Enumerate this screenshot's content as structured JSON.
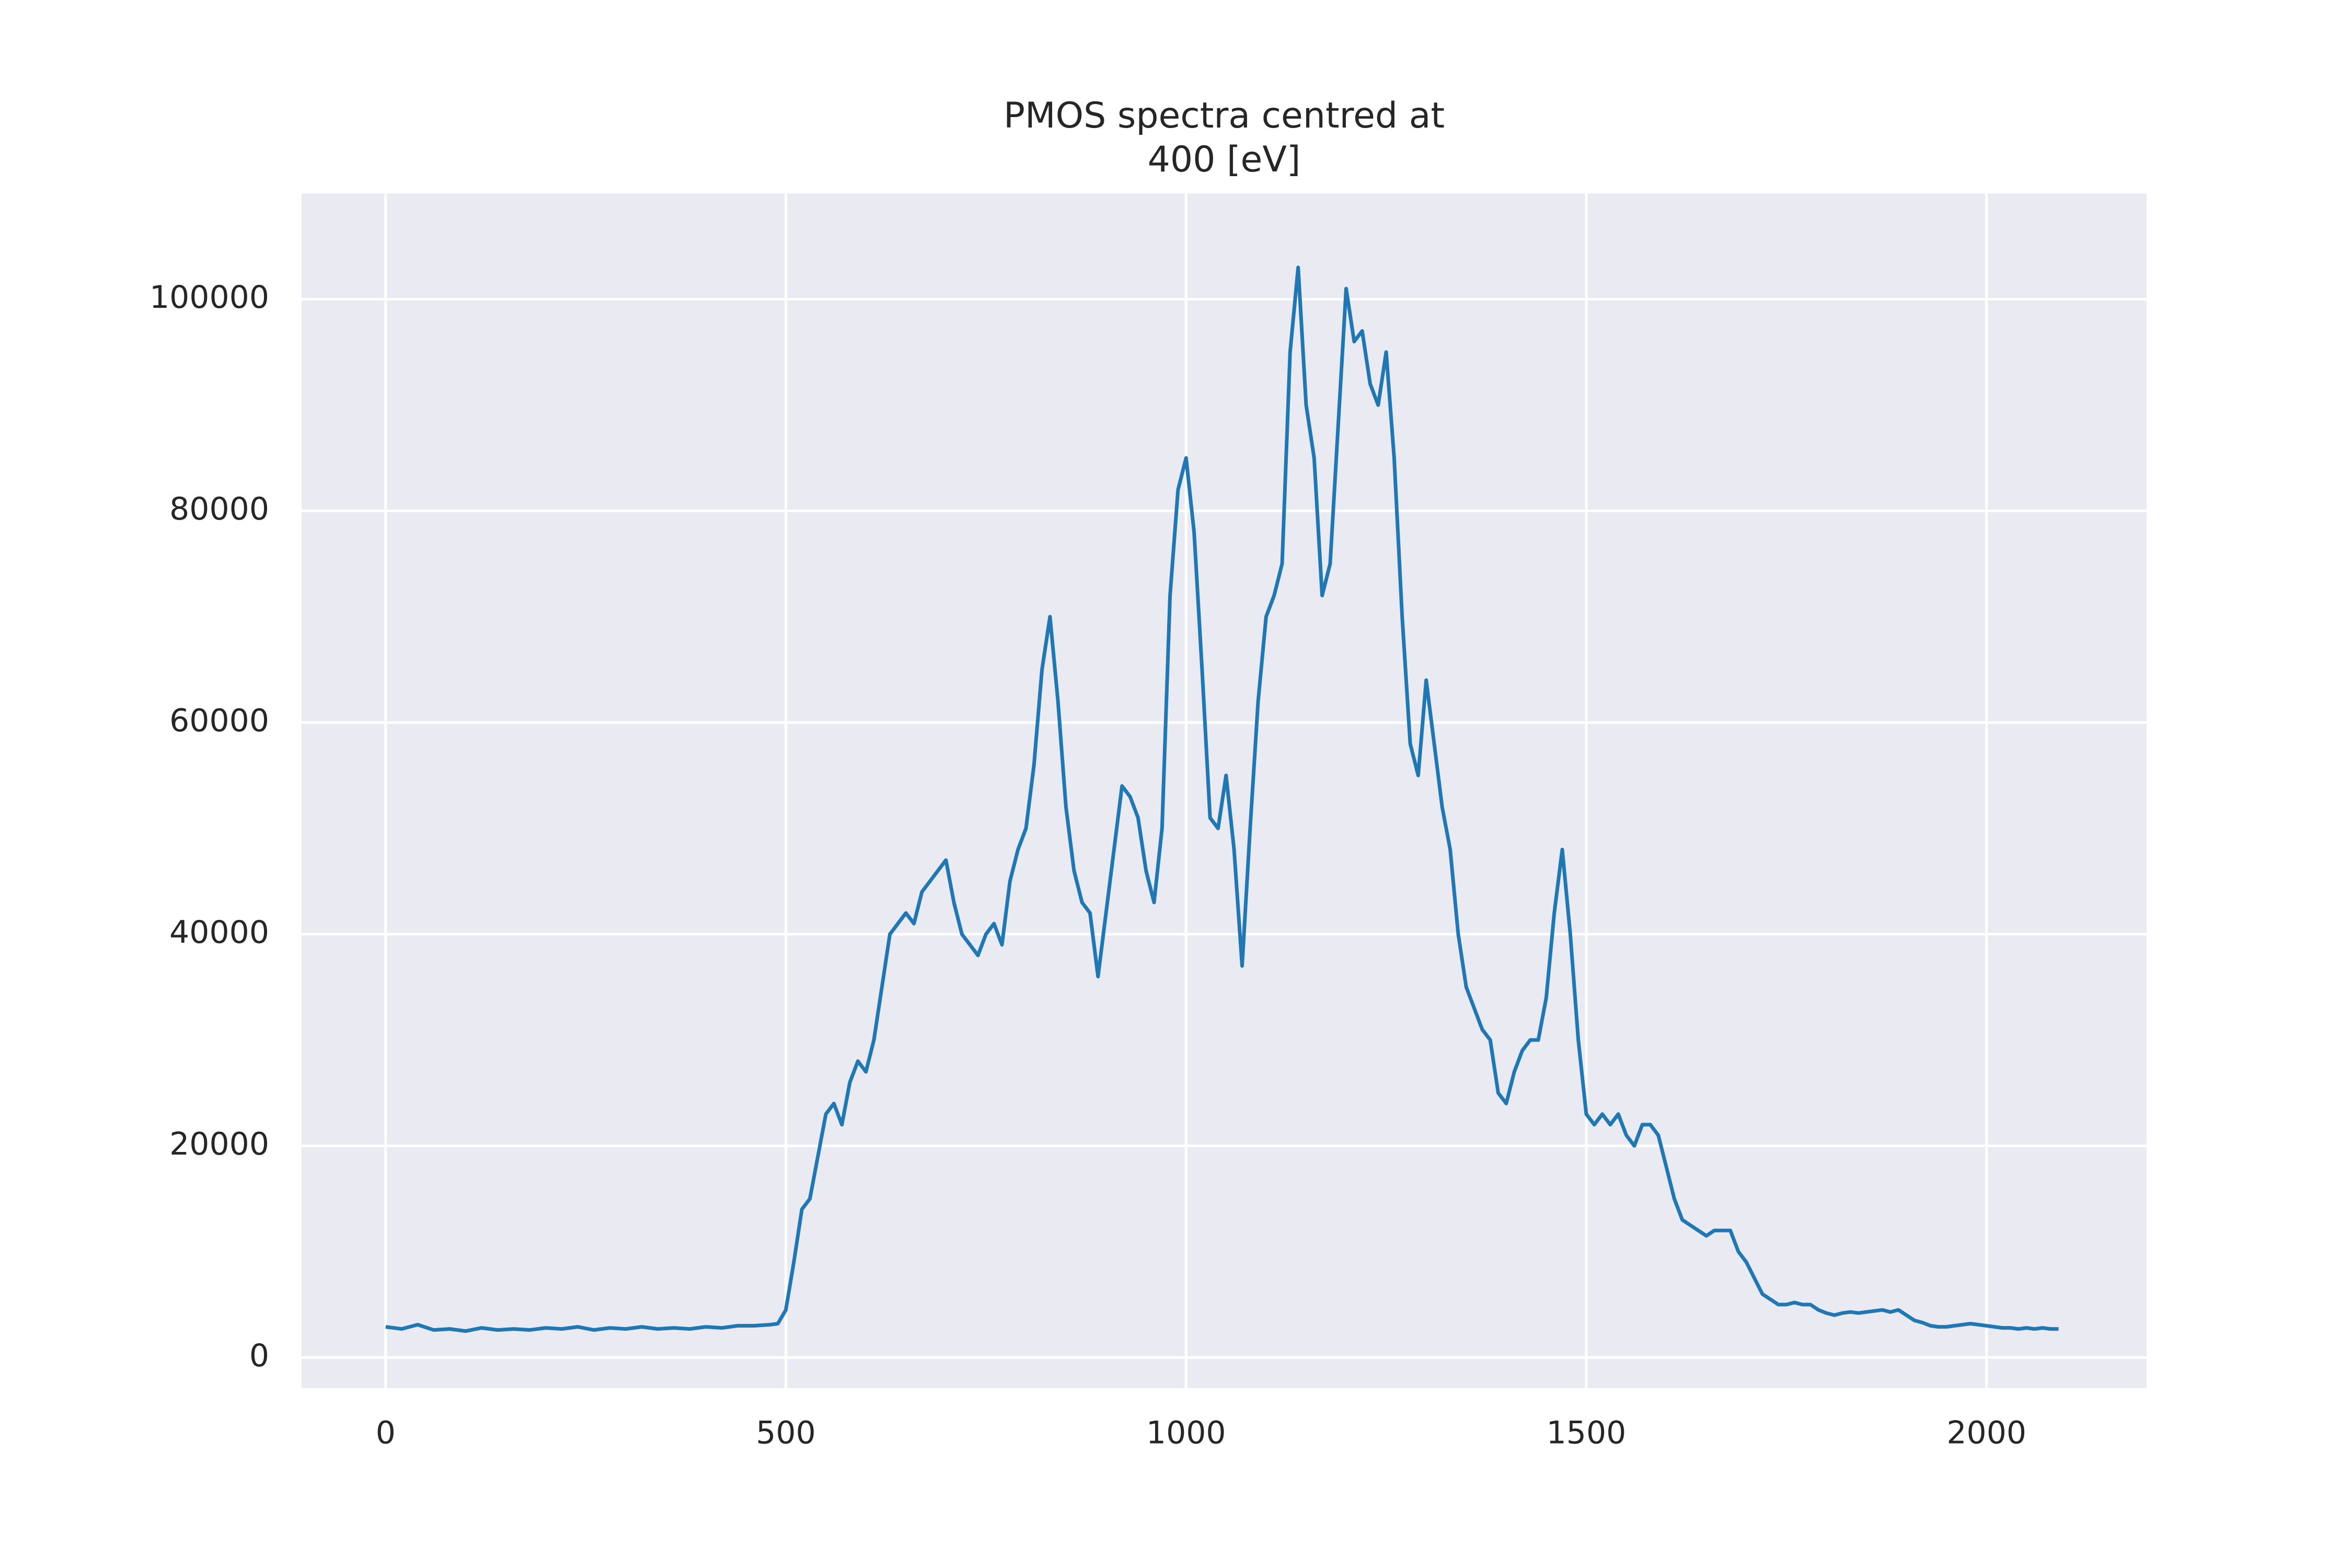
{
  "chart_data": {
    "type": "line",
    "title": "PMOS spectra centred at\n400 [eV]",
    "x": [
      0,
      20,
      40,
      60,
      80,
      100,
      120,
      140,
      160,
      180,
      200,
      220,
      240,
      260,
      280,
      300,
      320,
      340,
      360,
      380,
      400,
      420,
      440,
      460,
      480,
      490,
      500,
      510,
      520,
      530,
      540,
      550,
      560,
      570,
      580,
      590,
      600,
      610,
      620,
      630,
      640,
      650,
      660,
      670,
      680,
      690,
      700,
      710,
      720,
      730,
      740,
      750,
      760,
      770,
      780,
      790,
      800,
      810,
      820,
      830,
      840,
      850,
      860,
      870,
      880,
      890,
      900,
      910,
      920,
      930,
      940,
      950,
      960,
      970,
      980,
      990,
      1000,
      1010,
      1020,
      1030,
      1040,
      1050,
      1060,
      1070,
      1080,
      1090,
      1100,
      1110,
      1120,
      1130,
      1140,
      1150,
      1160,
      1170,
      1180,
      1190,
      1200,
      1210,
      1220,
      1230,
      1240,
      1250,
      1260,
      1270,
      1280,
      1290,
      1300,
      1310,
      1320,
      1330,
      1340,
      1350,
      1360,
      1370,
      1380,
      1390,
      1400,
      1410,
      1420,
      1430,
      1440,
      1450,
      1460,
      1470,
      1480,
      1490,
      1500,
      1510,
      1520,
      1530,
      1540,
      1550,
      1560,
      1570,
      1580,
      1590,
      1600,
      1610,
      1620,
      1630,
      1640,
      1650,
      1660,
      1670,
      1680,
      1690,
      1700,
      1710,
      1720,
      1730,
      1740,
      1750,
      1760,
      1770,
      1780,
      1790,
      1800,
      1810,
      1820,
      1830,
      1840,
      1850,
      1860,
      1870,
      1880,
      1890,
      1900,
      1910,
      1920,
      1930,
      1940,
      1950,
      1960,
      1970,
      1980,
      1990,
      2000,
      2010,
      2020,
      2030,
      2040,
      2050,
      2060,
      2070,
      2080,
      2090
    ],
    "values": [
      2900,
      2700,
      3100,
      2600,
      2700,
      2500,
      2800,
      2600,
      2700,
      2600,
      2800,
      2700,
      2900,
      2600,
      2800,
      2700,
      2900,
      2700,
      2800,
      2700,
      2900,
      2800,
      3000,
      3000,
      3100,
      3200,
      4500,
      9000,
      14000,
      15000,
      19000,
      23000,
      24000,
      22000,
      26000,
      28000,
      27000,
      30000,
      35000,
      40000,
      41000,
      42000,
      41000,
      44000,
      45000,
      46000,
      47000,
      43000,
      40000,
      39000,
      38000,
      40000,
      41000,
      39000,
      45000,
      48000,
      50000,
      56000,
      65000,
      70000,
      62000,
      52000,
      46000,
      43000,
      42000,
      36000,
      42000,
      48000,
      54000,
      53000,
      51000,
      46000,
      43000,
      50000,
      72000,
      82000,
      85000,
      78000,
      65000,
      51000,
      50000,
      55000,
      48000,
      37000,
      50000,
      62000,
      70000,
      72000,
      75000,
      95000,
      103000,
      90000,
      85000,
      72000,
      75000,
      88000,
      101000,
      96000,
      97000,
      92000,
      90000,
      95000,
      85000,
      70000,
      58000,
      55000,
      64000,
      58000,
      52000,
      48000,
      40000,
      35000,
      33000,
      31000,
      30000,
      25000,
      24000,
      27000,
      29000,
      30000,
      30000,
      34000,
      42000,
      48000,
      40000,
      30000,
      23000,
      22000,
      23000,
      22000,
      23000,
      21000,
      20000,
      22000,
      22000,
      21000,
      18000,
      15000,
      13000,
      12500,
      12000,
      11500,
      12000,
      12000,
      12000,
      10000,
      9000,
      7500,
      6000,
      5500,
      5000,
      5000,
      5200,
      5000,
      5000,
      4500,
      4200,
      4000,
      4200,
      4300,
      4200,
      4300,
      4400,
      4500,
      4300,
      4500,
      4000,
      3500,
      3300,
      3000,
      2900,
      2900,
      3000,
      3100,
      3200,
      3100,
      3000,
      2900,
      2800,
      2800,
      2700,
      2800,
      2700,
      2800,
      2700,
      2700
    ],
    "color": "#1f77b4",
    "xlim": [
      -105,
      2200
    ],
    "ylim": [
      -2900,
      110000
    ],
    "xticks": [
      0,
      500,
      1000,
      1500,
      2000
    ],
    "yticks": [
      0,
      20000,
      40000,
      60000,
      80000,
      100000
    ],
    "grid": true
  }
}
